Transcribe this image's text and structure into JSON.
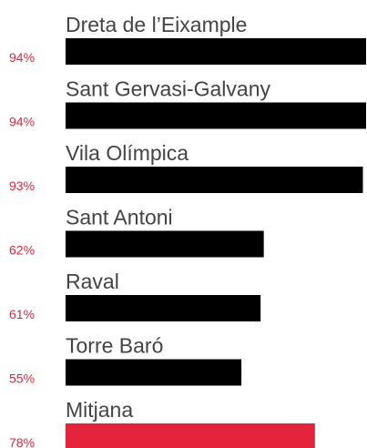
{
  "chart_data": {
    "type": "bar",
    "categories": [
      "Dreta de l’Eixample",
      "Sant Gervasi-Galvany",
      "Vila Olímpica",
      "Sant Antoni",
      "Raval",
      "Torre Baró",
      "Mitjana"
    ],
    "values": [
      94,
      94,
      93,
      62,
      61,
      55,
      78
    ],
    "value_labels": [
      "94%",
      "94%",
      "93%",
      "62%",
      "61%",
      "55%",
      "78%"
    ],
    "colors": [
      "#000000",
      "#000000",
      "#000000",
      "#000000",
      "#000000",
      "#000000",
      "#e3243b"
    ],
    "xlim": [
      0,
      94
    ]
  }
}
